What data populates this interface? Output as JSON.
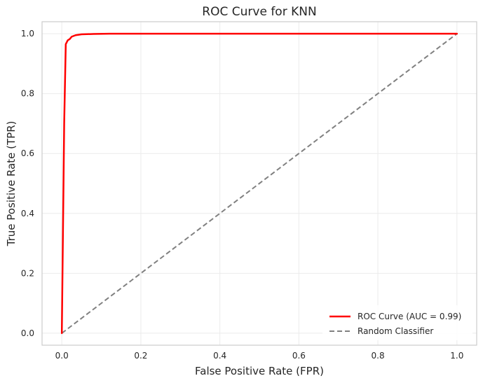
{
  "chart_data": {
    "type": "line",
    "title": "ROC Curve for KNN",
    "xlabel": "False Positive Rate (FPR)",
    "ylabel": "True Positive Rate (TPR)",
    "xlim": [
      -0.05,
      1.05
    ],
    "ylim": [
      -0.04,
      1.04
    ],
    "x_ticks": [
      "0.0",
      "0.2",
      "0.4",
      "0.6",
      "0.8",
      "1.0"
    ],
    "y_ticks": [
      "0.0",
      "0.2",
      "0.4",
      "0.6",
      "0.8",
      "1.0"
    ],
    "grid": true,
    "legend_position": "lower-right",
    "series": [
      {
        "name": "ROC Curve (AUC = 0.99)",
        "color": "#ff0000",
        "style": "solid",
        "x": [
          0.0,
          0.006,
          0.01,
          0.015,
          0.02,
          0.025,
          0.035,
          0.05,
          0.08,
          0.12,
          0.2,
          0.4,
          0.6,
          0.8,
          1.0
        ],
        "y": [
          0.0,
          0.7,
          0.965,
          0.978,
          0.982,
          0.99,
          0.995,
          0.998,
          0.999,
          1.0,
          1.0,
          1.0,
          1.0,
          1.0,
          1.0
        ]
      },
      {
        "name": "Random Classifier",
        "color": "#808080",
        "style": "dashed",
        "x": [
          0.0,
          1.0
        ],
        "y": [
          0.0,
          1.0
        ]
      }
    ]
  }
}
